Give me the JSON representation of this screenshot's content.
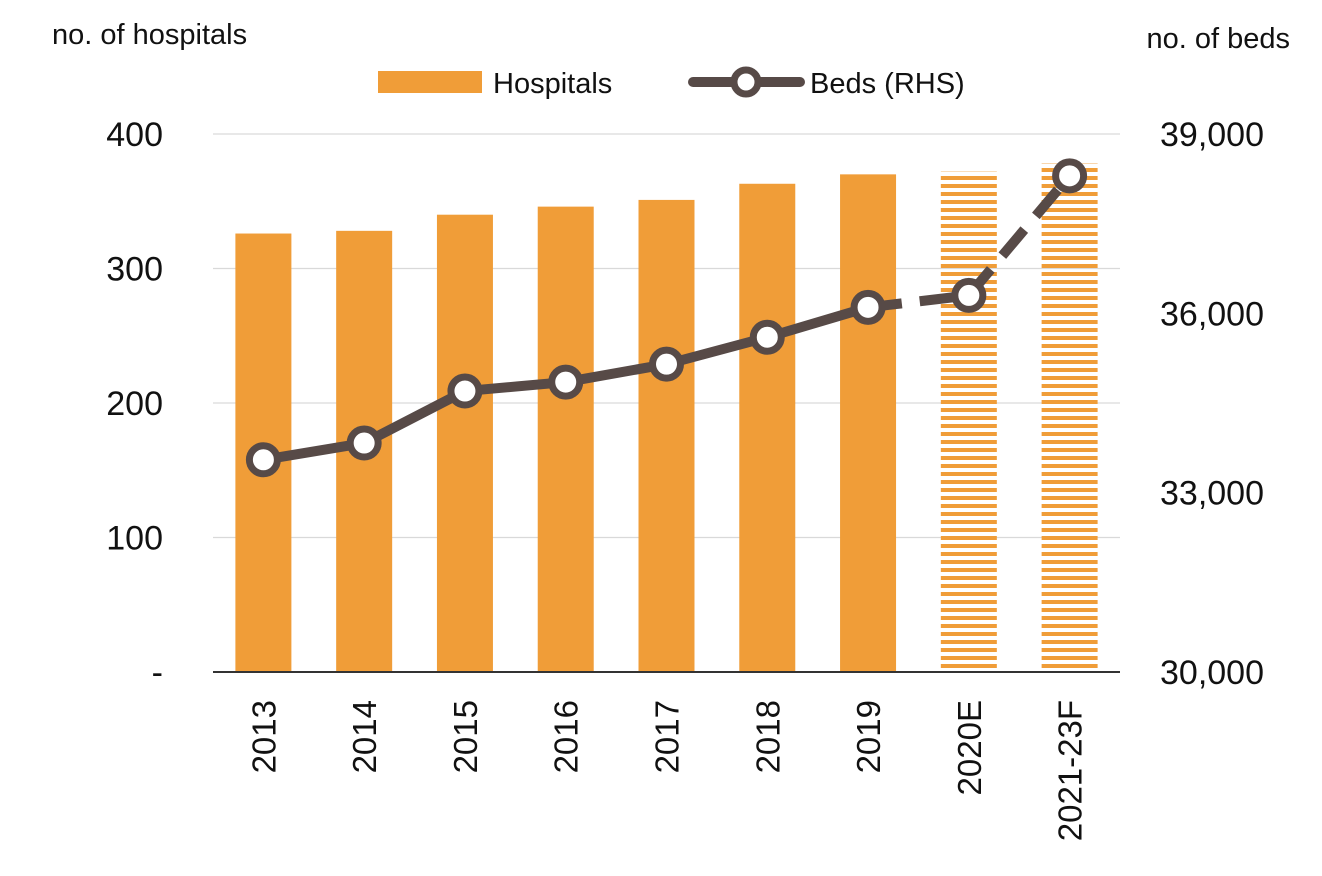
{
  "chart_data": {
    "type": "bar+line",
    "categories": [
      "2013",
      "2014",
      "2015",
      "2016",
      "2017",
      "2018",
      "2019",
      "2020E",
      "2021-23F"
    ],
    "forecast_categories": [
      "2020E",
      "2021-23F"
    ],
    "series": [
      {
        "name": "Hospitals",
        "type": "bar",
        "axis": "left",
        "color": "#F09D38",
        "values": [
          326,
          328,
          340,
          346,
          351,
          363,
          370,
          372,
          378
        ]
      },
      {
        "name": "Beds (RHS)",
        "type": "line",
        "axis": "right",
        "color": "#574A47",
        "values": [
          33550,
          33830,
          34700,
          34850,
          35150,
          35600,
          36100,
          36300,
          38300
        ]
      }
    ],
    "left_axis": {
      "title": "no. of hospitals",
      "range": [
        0,
        400
      ],
      "ticks": [
        0,
        100,
        200,
        300,
        400
      ],
      "tick_labels": [
        "-",
        "100",
        "200",
        "300",
        "400"
      ]
    },
    "right_axis": {
      "title": "no. of beds",
      "range": [
        30000,
        39000
      ],
      "ticks": [
        30000,
        33000,
        36000,
        39000
      ],
      "tick_labels": [
        "30,000",
        "33,000",
        "36,000",
        "39,000"
      ]
    },
    "grid": true,
    "legend": {
      "position": "top-center",
      "items": [
        "Hospitals",
        "Beds (RHS)"
      ]
    }
  }
}
